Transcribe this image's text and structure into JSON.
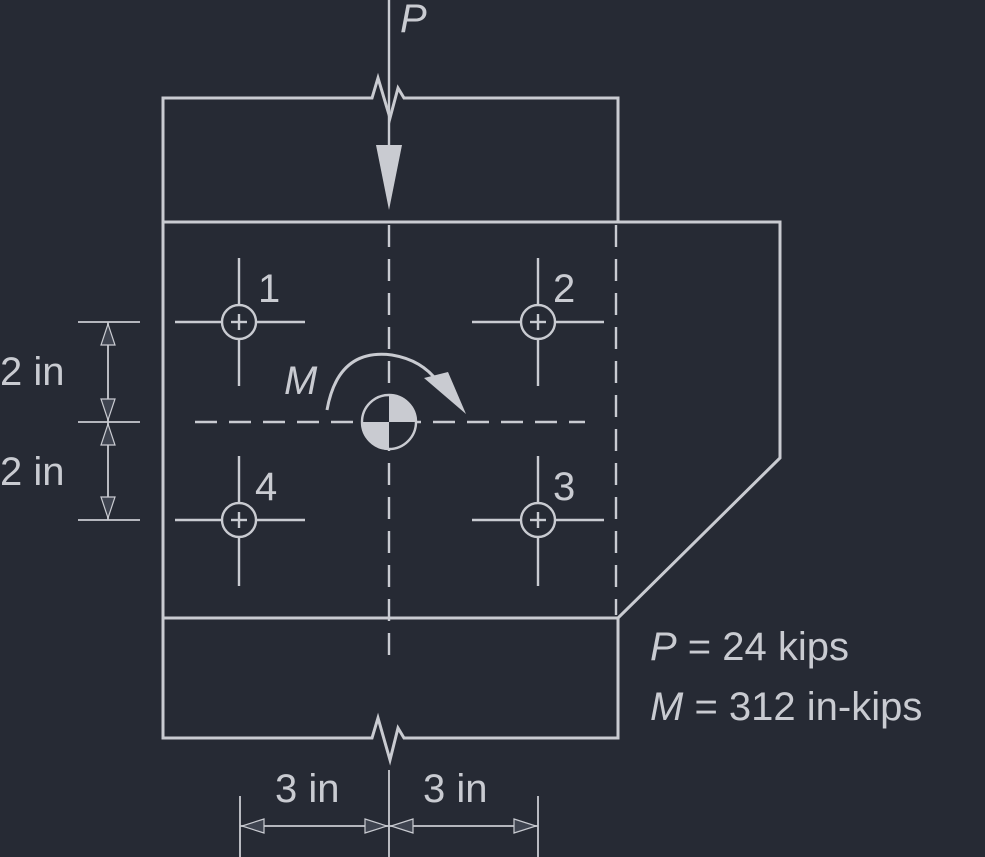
{
  "diagram": {
    "load_label": "P",
    "moment_label": "M",
    "bolts": [
      {
        "id": "1"
      },
      {
        "id": "2"
      },
      {
        "id": "3"
      },
      {
        "id": "4"
      }
    ],
    "dimensions": {
      "vertical_top": "2 in",
      "vertical_bottom": "2 in",
      "horizontal_left": "3 in",
      "horizontal_right": "3 in"
    },
    "given": {
      "p_symbol": "P",
      "p_value": " = 24 kips",
      "m_symbol": "M",
      "m_value": " = 312 in-kips"
    },
    "colors": {
      "background": "#262a34",
      "lines": "#c9cbd1"
    }
  }
}
